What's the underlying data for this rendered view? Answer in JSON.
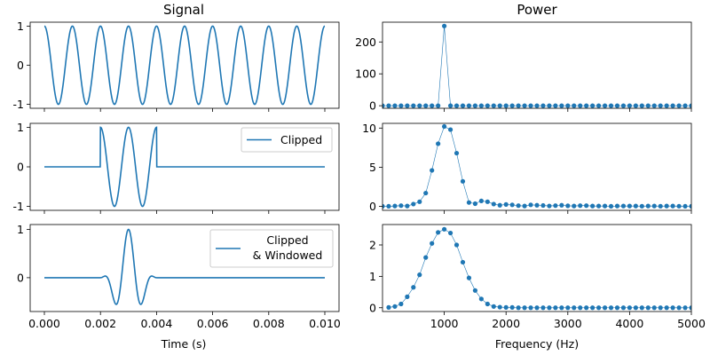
{
  "titles": {
    "left": "Signal",
    "right": "Power"
  },
  "chart_data": [
    {
      "type": "line",
      "panel": "signal-1",
      "title": "Signal",
      "xlabel": "",
      "xlim": [
        0,
        0.01
      ],
      "ylim": [
        -1.1,
        1.1
      ],
      "yticks": [
        -1,
        0,
        1
      ],
      "xticks": [
        0.0,
        0.002,
        0.004,
        0.006,
        0.008,
        0.01
      ],
      "signal": {
        "type": "cosine",
        "freq_hz": 1000,
        "amplitude": 1
      },
      "legend": ""
    },
    {
      "type": "line",
      "panel": "signal-2",
      "xlabel": "",
      "xlim": [
        0,
        0.01
      ],
      "ylim": [
        -1.1,
        1.1
      ],
      "yticks": [
        -1,
        0,
        1
      ],
      "xticks": [
        0.0,
        0.002,
        0.004,
        0.006,
        0.008,
        0.01
      ],
      "signal": {
        "type": "clipped-cosine",
        "freq_hz": 1000,
        "t_start": 0.002,
        "t_end": 0.004
      },
      "legend": "Clipped"
    },
    {
      "type": "line",
      "panel": "signal-3",
      "xlabel": "Time (s)",
      "xlim": [
        0,
        0.01
      ],
      "ylim": [
        -0.7,
        1.1
      ],
      "yticks": [
        0,
        1
      ],
      "xticks": [
        0.0,
        0.002,
        0.004,
        0.006,
        0.008,
        0.01
      ],
      "xtick_labels": [
        "0.000",
        "0.002",
        "0.004",
        "0.006",
        "0.008",
        "0.010"
      ],
      "signal": {
        "type": "windowed-cosine",
        "freq_hz": 1000,
        "t_start": 0.002,
        "t_end": 0.004
      },
      "legend_lines": [
        "Clipped",
        "& Windowed"
      ]
    },
    {
      "type": "line",
      "panel": "power-1",
      "title": "Power",
      "xlabel": "",
      "xlim": [
        0,
        5000
      ],
      "ylim": [
        -8,
        262
      ],
      "yticks": [
        0,
        100,
        200
      ],
      "xticks": [
        1000,
        2000,
        3000,
        4000,
        5000
      ],
      "x": [
        0,
        100,
        200,
        300,
        400,
        500,
        600,
        700,
        800,
        900,
        1000,
        1100,
        1200,
        1300,
        1400,
        1500,
        1600,
        1700,
        1800,
        1900,
        2000,
        2100,
        2200,
        2300,
        2400,
        2500,
        2600,
        2700,
        2800,
        2900,
        3000,
        3100,
        3200,
        3300,
        3400,
        3500,
        3600,
        3700,
        3800,
        3900,
        4000,
        4100,
        4200,
        4300,
        4400,
        4500,
        4600,
        4700,
        4800,
        4900,
        5000
      ],
      "y": [
        0,
        0,
        0,
        0,
        0,
        0,
        0,
        0,
        0,
        0,
        250,
        0,
        0,
        0,
        0,
        0,
        0,
        0,
        0,
        0,
        0,
        0,
        0,
        0,
        0,
        0,
        0,
        0,
        0,
        0,
        0,
        0,
        0,
        0,
        0,
        0,
        0,
        0,
        0,
        0,
        0,
        0,
        0,
        0,
        0,
        0,
        0,
        0,
        0,
        0,
        0
      ]
    },
    {
      "type": "line",
      "panel": "power-2",
      "xlabel": "",
      "xlim": [
        0,
        5000
      ],
      "ylim": [
        -0.5,
        10.6
      ],
      "yticks": [
        0,
        5,
        10
      ],
      "xticks": [
        1000,
        2000,
        3000,
        4000,
        5000
      ],
      "x": [
        0,
        100,
        200,
        300,
        400,
        500,
        600,
        700,
        800,
        900,
        1000,
        1100,
        1200,
        1300,
        1400,
        1500,
        1600,
        1700,
        1800,
        1900,
        2000,
        2100,
        2200,
        2300,
        2400,
        2500,
        2600,
        2700,
        2800,
        2900,
        3000,
        3100,
        3200,
        3300,
        3400,
        3500,
        3600,
        3700,
        3800,
        3900,
        4000,
        4100,
        4200,
        4300,
        4400,
        4500,
        4600,
        4700,
        4800,
        4900,
        5000
      ],
      "y": [
        0.02,
        0.02,
        0.05,
        0.1,
        0.05,
        0.3,
        0.6,
        1.7,
        4.6,
        8.0,
        10.2,
        9.8,
        6.8,
        3.2,
        0.5,
        0.35,
        0.7,
        0.6,
        0.3,
        0.15,
        0.25,
        0.2,
        0.1,
        0.05,
        0.2,
        0.15,
        0.12,
        0.06,
        0.1,
        0.15,
        0.08,
        0.05,
        0.1,
        0.1,
        0.05,
        0.05,
        0.05,
        0.02,
        0.05,
        0.05,
        0.05,
        0.05,
        0.03,
        0.05,
        0.05,
        0.03,
        0.05,
        0.05,
        0.03,
        0.02,
        0.02
      ]
    },
    {
      "type": "line",
      "panel": "power-3",
      "xlabel": "Frequency (Hz)",
      "xlim": [
        0,
        5000
      ],
      "ylim": [
        -0.12,
        2.65
      ],
      "yticks": [
        0,
        1,
        2
      ],
      "xticks": [
        1000,
        2000,
        3000,
        4000,
        5000
      ],
      "x": [
        100,
        200,
        300,
        400,
        500,
        600,
        700,
        800,
        900,
        1000,
        1100,
        1200,
        1300,
        1400,
        1500,
        1600,
        1700,
        1800,
        1900,
        2000,
        2100,
        2200,
        2300,
        2400,
        2500,
        2600,
        2700,
        2800,
        2900,
        3000,
        3100,
        3200,
        3300,
        3400,
        3500,
        3600,
        3700,
        3800,
        3900,
        4000,
        4100,
        4200,
        4300,
        4400,
        4500,
        4600,
        4700,
        4800,
        4900,
        5000
      ],
      "y": [
        0.01,
        0.04,
        0.12,
        0.35,
        0.65,
        1.05,
        1.6,
        2.05,
        2.4,
        2.5,
        2.38,
        2.0,
        1.45,
        0.95,
        0.55,
        0.28,
        0.12,
        0.04,
        0.02,
        0.01,
        0.01,
        0,
        0,
        0,
        0,
        0,
        0,
        0,
        0,
        0,
        0,
        0,
        0,
        0,
        0,
        0,
        0,
        0,
        0,
        0,
        0,
        0,
        0,
        0,
        0,
        0,
        0,
        0,
        0,
        0
      ]
    }
  ]
}
